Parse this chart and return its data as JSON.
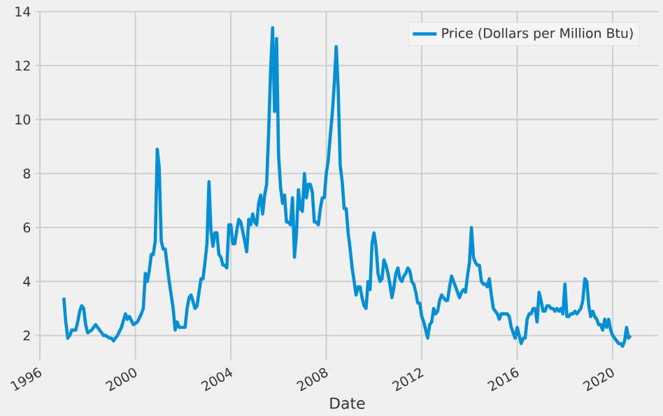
{
  "chart_data": {
    "type": "line",
    "xlabel": "Date",
    "x": [
      "1997-01",
      "1997-02",
      "1997-03",
      "1997-04",
      "1997-05",
      "1997-06",
      "1997-07",
      "1997-08",
      "1997-09",
      "1997-10",
      "1997-11",
      "1997-12",
      "1998-01",
      "1998-03",
      "1998-05",
      "1998-07",
      "1998-09",
      "1998-10",
      "1998-12",
      "1999-01",
      "1999-02",
      "1999-04",
      "1999-06",
      "1999-08",
      "1999-09",
      "1999-10",
      "1999-12",
      "2000-02",
      "2000-04",
      "2000-05",
      "2000-06",
      "2000-07",
      "2000-08",
      "2000-09",
      "2000-10",
      "2000-11",
      "2000-12",
      "2001-01",
      "2001-02",
      "2001-03",
      "2001-04",
      "2001-06",
      "2001-08",
      "2001-09",
      "2001-10",
      "2001-11",
      "2001-12",
      "2002-02",
      "2002-03",
      "2002-04",
      "2002-05",
      "2002-07",
      "2002-08",
      "2002-10",
      "2002-11",
      "2002-12",
      "2003-01",
      "2003-02",
      "2003-03",
      "2003-04",
      "2003-05",
      "2003-06",
      "2003-07",
      "2003-08",
      "2003-09",
      "2003-10",
      "2003-11",
      "2003-12",
      "2004-01",
      "2004-02",
      "2004-03",
      "2004-04",
      "2004-05",
      "2004-06",
      "2004-08",
      "2004-09",
      "2004-10",
      "2004-11",
      "2004-12",
      "2005-01",
      "2005-02",
      "2005-03",
      "2005-04",
      "2005-05",
      "2005-06",
      "2005-07",
      "2005-08",
      "2005-09",
      "2005-10",
      "2005-11",
      "2005-12",
      "2006-01",
      "2006-02",
      "2006-03",
      "2006-04",
      "2006-05",
      "2006-06",
      "2006-07",
      "2006-08",
      "2006-09",
      "2006-10",
      "2006-11",
      "2006-12",
      "2007-01",
      "2007-02",
      "2007-03",
      "2007-04",
      "2007-05",
      "2007-06",
      "2007-07",
      "2007-08",
      "2007-09",
      "2007-10",
      "2007-11",
      "2007-12",
      "2008-01",
      "2008-02",
      "2008-03",
      "2008-04",
      "2008-05",
      "2008-06",
      "2008-07",
      "2008-08",
      "2008-09",
      "2008-10",
      "2008-11",
      "2008-12",
      "2009-01",
      "2009-02",
      "2009-03",
      "2009-04",
      "2009-05",
      "2009-06",
      "2009-07",
      "2009-08",
      "2009-09",
      "2009-10",
      "2009-11",
      "2009-12",
      "2010-01",
      "2010-02",
      "2010-03",
      "2010-04",
      "2010-05",
      "2010-06",
      "2010-07",
      "2010-08",
      "2010-09",
      "2010-10",
      "2010-11",
      "2010-12",
      "2011-01",
      "2011-02",
      "2011-03",
      "2011-04",
      "2011-05",
      "2011-06",
      "2011-07",
      "2011-08",
      "2011-09",
      "2011-10",
      "2011-11",
      "2011-12",
      "2012-01",
      "2012-02",
      "2012-03",
      "2012-04",
      "2012-05",
      "2012-06",
      "2012-07",
      "2012-08",
      "2012-09",
      "2012-10",
      "2012-11",
      "2012-12",
      "2013-01",
      "2013-02",
      "2013-03",
      "2013-04",
      "2013-05",
      "2013-06",
      "2013-07",
      "2013-08",
      "2013-09",
      "2013-10",
      "2013-11",
      "2013-12",
      "2014-01",
      "2014-02",
      "2014-03",
      "2014-04",
      "2014-05",
      "2014-06",
      "2014-07",
      "2014-08",
      "2014-09",
      "2014-10",
      "2014-11",
      "2014-12",
      "2015-01",
      "2015-02",
      "2015-03",
      "2015-04",
      "2015-05",
      "2015-06",
      "2015-07",
      "2015-08",
      "2015-09",
      "2015-10",
      "2015-11",
      "2015-12",
      "2016-01",
      "2016-02",
      "2016-03",
      "2016-04",
      "2016-05",
      "2016-06",
      "2016-07",
      "2016-08",
      "2016-09",
      "2016-10",
      "2016-11",
      "2016-12",
      "2017-01",
      "2017-02",
      "2017-03",
      "2017-04",
      "2017-05",
      "2017-06",
      "2017-07",
      "2017-08",
      "2017-09",
      "2017-10",
      "2017-11",
      "2017-12",
      "2018-01",
      "2018-02",
      "2018-03",
      "2018-04",
      "2018-05",
      "2018-06",
      "2018-07",
      "2018-08",
      "2018-09",
      "2018-10",
      "2018-11",
      "2018-12",
      "2019-01",
      "2019-02",
      "2019-03",
      "2019-04",
      "2019-05",
      "2019-06",
      "2019-07",
      "2019-08",
      "2019-09",
      "2019-10",
      "2019-11",
      "2019-12",
      "2020-01",
      "2020-02",
      "2020-03",
      "2020-04",
      "2020-05",
      "2020-06",
      "2020-07",
      "2020-08",
      "2020-09",
      "2020-10"
    ],
    "series": [
      {
        "name": "Price (Dollars per Million Btu)",
        "color": "#008fd5",
        "values": [
          3.4,
          2.5,
          1.9,
          2.0,
          2.2,
          2.2,
          2.2,
          2.5,
          2.9,
          3.1,
          3.0,
          2.4,
          2.1,
          2.2,
          2.4,
          2.2,
          2.0,
          2.0,
          1.9,
          1.9,
          1.8,
          2.0,
          2.3,
          2.8,
          2.6,
          2.7,
          2.4,
          2.5,
          2.8,
          3.0,
          4.3,
          4.0,
          4.4,
          5.0,
          5.0,
          5.5,
          8.9,
          8.2,
          5.5,
          5.2,
          5.2,
          4.0,
          3.0,
          2.2,
          2.5,
          2.3,
          2.3,
          2.3,
          3.0,
          3.4,
          3.5,
          3.0,
          3.1,
          4.1,
          4.1,
          4.7,
          5.4,
          7.7,
          5.9,
          5.3,
          5.8,
          5.8,
          5.0,
          4.9,
          4.6,
          4.6,
          4.5,
          6.1,
          6.1,
          5.4,
          5.4,
          5.9,
          6.3,
          6.2,
          5.5,
          5.1,
          6.3,
          6.1,
          6.5,
          6.2,
          6.1,
          6.9,
          7.2,
          6.5,
          7.2,
          7.6,
          9.5,
          11.8,
          13.4,
          10.3,
          13.0,
          8.7,
          7.5,
          6.9,
          7.2,
          6.2,
          6.2,
          6.1,
          7.1,
          4.9,
          5.8,
          7.4,
          6.7,
          6.6,
          8.0,
          7.1,
          7.6,
          7.6,
          7.3,
          6.2,
          6.2,
          6.1,
          6.7,
          7.1,
          7.1,
          8.0,
          8.5,
          9.4,
          10.2,
          11.3,
          12.7,
          11.1,
          8.3,
          7.7,
          6.7,
          6.7,
          5.8,
          5.2,
          4.5,
          4.0,
          3.5,
          3.8,
          3.8,
          3.4,
          3.1,
          3.0,
          4.0,
          3.7,
          5.4,
          5.8,
          5.3,
          4.3,
          4.0,
          4.1,
          4.8,
          4.6,
          4.3,
          3.9,
          3.4,
          3.8,
          4.3,
          4.5,
          4.1,
          4.0,
          4.2,
          4.3,
          4.5,
          4.4,
          4.0,
          3.9,
          3.6,
          3.2,
          3.2,
          2.7,
          2.5,
          2.2,
          1.9,
          2.4,
          2.5,
          3.0,
          2.8,
          2.9,
          3.3,
          3.5,
          3.4,
          3.3,
          3.3,
          3.8,
          4.2,
          4.0,
          3.8,
          3.6,
          3.4,
          3.6,
          3.7,
          3.6,
          4.2,
          4.7,
          6.0,
          4.9,
          4.7,
          4.6,
          4.6,
          4.0,
          3.9,
          3.9,
          3.8,
          4.1,
          3.5,
          3.0,
          2.9,
          2.8,
          2.6,
          2.8,
          2.8,
          2.8,
          2.8,
          2.7,
          2.3,
          2.1,
          1.9,
          2.3,
          2.0,
          1.7,
          1.9,
          1.9,
          2.6,
          2.8,
          2.8,
          3.0,
          3.0,
          2.5,
          3.6,
          3.3,
          2.9,
          2.9,
          3.1,
          3.1,
          3.0,
          3.0,
          2.9,
          3.0,
          2.9,
          3.0,
          2.8,
          3.9,
          2.7,
          2.7,
          2.8,
          2.8,
          2.9,
          2.8,
          2.9,
          3.0,
          3.3,
          4.1,
          4.0,
          3.1,
          2.7,
          2.9,
          2.7,
          2.6,
          2.4,
          2.4,
          2.2,
          2.6,
          2.3,
          2.6,
          2.2,
          2.0,
          1.9,
          1.8,
          1.7,
          1.7,
          1.6,
          1.8,
          2.3,
          1.9,
          2.0
        ]
      }
    ],
    "xlim": [
      "1995-11",
      "2021-12"
    ],
    "xticks": [
      "1996",
      "2000",
      "2004",
      "2008",
      "2012",
      "2016",
      "2020"
    ],
    "ylim": [
      1.1,
      14
    ],
    "yticks": [
      2,
      4,
      6,
      8,
      10,
      12,
      14
    ],
    "grid": true,
    "legend": "top right"
  }
}
